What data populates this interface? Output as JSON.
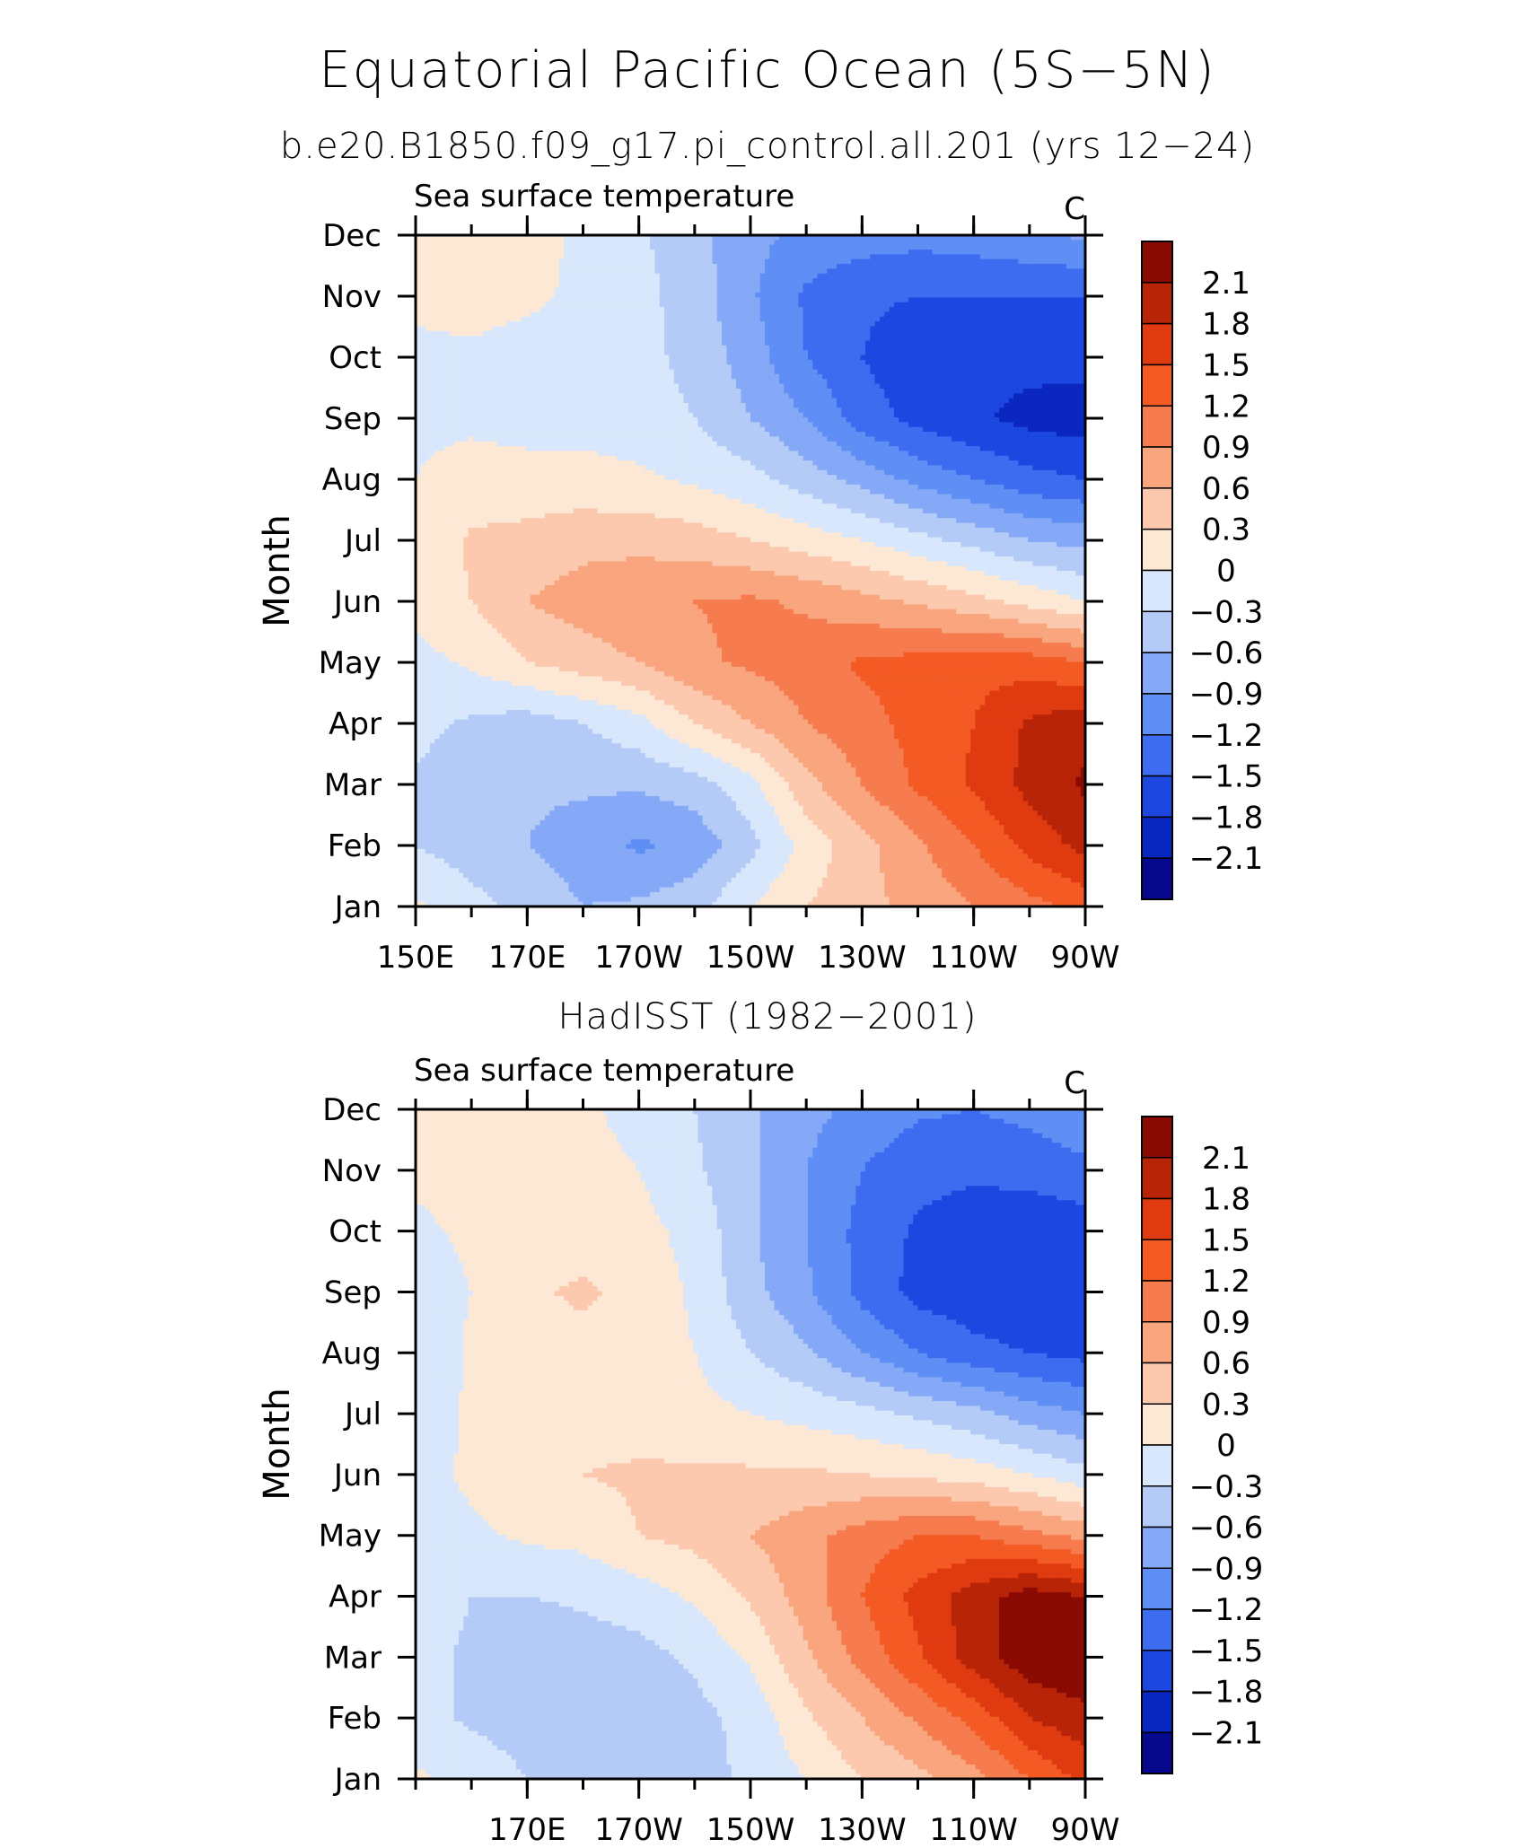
{
  "header": {
    "title": "Equatorial Pacific Ocean (5S−5N)",
    "subtitle": "b.e20.B1850.f09_g17.pi_control.all.201 (yrs 12−24)"
  },
  "colors": {
    "levels": [
      -2.4,
      -2.1,
      -1.8,
      -1.5,
      -1.2,
      -0.9,
      -0.6,
      -0.3,
      0,
      0.3,
      0.6,
      0.9,
      1.2,
      1.5,
      1.8,
      2.1,
      2.4
    ],
    "fills": [
      "#06098c",
      "#0a27bf",
      "#1c47e0",
      "#3d6cf0",
      "#5f8ef5",
      "#85a9f7",
      "#b4cbf8",
      "#d8e7fb",
      "#fde8d6",
      "#fcc9ae",
      "#f9a57e",
      "#f67c4f",
      "#f35a24",
      "#df3a10",
      "#b82407",
      "#8a0b03"
    ]
  },
  "chart_data": [
    {
      "type": "heatmap",
      "title": "b.e20.B1850.f09_g17.pi_control.all.201 (yrs 12−24)",
      "left_label": "Sea surface temperature",
      "right_label": "C",
      "ylabel": "Month",
      "xlabel": "",
      "x": [
        150,
        160,
        170,
        180,
        190,
        200,
        210,
        220,
        230,
        240,
        250,
        260,
        270
      ],
      "x_tick_values": [
        150,
        170,
        190,
        210,
        230,
        250,
        270
      ],
      "x_tick_labels": [
        "150E",
        "170E",
        "170W",
        "150W",
        "130W",
        "110W",
        "90W"
      ],
      "y_tick_labels": [
        "Jan",
        "Feb",
        "Mar",
        "Apr",
        "May",
        "Jun",
        "Jul",
        "Aug",
        "Sep",
        "Oct",
        "Nov",
        "Dec"
      ],
      "colorbar_labels": [
        "2.1",
        "1.8",
        "1.5",
        "1.2",
        "0.9",
        "0.6",
        "0.3",
        "0",
        "−0.3",
        "−0.6",
        "−0.9",
        "−1.2",
        "−1.5",
        "−1.8",
        "−2.1"
      ],
      "z": [
        [
          0.05,
          -0.2,
          -0.4,
          -0.6,
          -0.55,
          -0.4,
          0.0,
          0.3,
          0.5,
          0.7,
          0.9,
          1.1,
          1.3
        ],
        [
          -0.3,
          -0.45,
          -0.6,
          -0.75,
          -0.95,
          -0.8,
          -0.4,
          0.1,
          0.5,
          0.85,
          1.2,
          1.6,
          1.9
        ],
        [
          -0.35,
          -0.5,
          -0.55,
          -0.55,
          -0.55,
          -0.45,
          -0.1,
          0.5,
          0.9,
          1.25,
          1.55,
          1.9,
          2.15
        ],
        [
          -0.2,
          -0.35,
          -0.45,
          -0.3,
          -0.1,
          0.3,
          0.6,
          0.9,
          1.1,
          1.3,
          1.5,
          1.85,
          2.0
        ],
        [
          -0.1,
          0.05,
          0.3,
          0.45,
          0.6,
          0.85,
          0.95,
          1.05,
          1.25,
          1.3,
          1.4,
          1.35,
          1.2
        ],
        [
          0.1,
          0.3,
          0.6,
          0.75,
          0.85,
          0.9,
          0.95,
          0.85,
          0.7,
          0.55,
          0.4,
          0.2,
          0.0
        ],
        [
          0.05,
          0.35,
          0.4,
          0.5,
          0.5,
          0.45,
          0.3,
          0.15,
          0.0,
          -0.2,
          -0.4,
          -0.6,
          -0.7
        ],
        [
          0.0,
          0.1,
          0.1,
          0.1,
          0.05,
          -0.05,
          -0.2,
          -0.45,
          -0.7,
          -1.0,
          -1.2,
          -1.4,
          -1.5
        ],
        [
          -0.05,
          -0.05,
          -0.1,
          -0.1,
          -0.15,
          -0.3,
          -0.6,
          -0.9,
          -1.35,
          -1.6,
          -1.75,
          -1.9,
          -1.95
        ],
        [
          -0.05,
          -0.05,
          -0.1,
          -0.15,
          -0.2,
          -0.4,
          -0.75,
          -1.2,
          -1.5,
          -1.7,
          -1.7,
          -1.7,
          -1.7
        ],
        [
          0.05,
          0.1,
          0.05,
          -0.05,
          -0.2,
          -0.45,
          -0.85,
          -1.25,
          -1.45,
          -1.5,
          -1.5,
          -1.5,
          -1.5
        ],
        [
          0.1,
          0.15,
          0.1,
          -0.05,
          -0.25,
          -0.5,
          -0.8,
          -1.0,
          -1.05,
          -1.1,
          -1.05,
          -0.95,
          -0.85
        ]
      ]
    },
    {
      "type": "heatmap",
      "title": "HadISST (1982−2001)",
      "left_label": "Sea surface temperature",
      "right_label": "C",
      "ylabel": "Month",
      "xlabel": "",
      "x": [
        150,
        160,
        170,
        180,
        190,
        200,
        210,
        220,
        230,
        240,
        250,
        260,
        270
      ],
      "x_tick_values": [
        170,
        190,
        210,
        230,
        250,
        270
      ],
      "x_tick_labels": [
        "170E",
        "170W",
        "150W",
        "130W",
        "110W",
        "90W"
      ],
      "y_tick_labels": [
        "Jan",
        "Feb",
        "Mar",
        "Apr",
        "May",
        "Jun",
        "Jul",
        "Aug",
        "Sep",
        "Oct",
        "Nov",
        "Dec"
      ],
      "colorbar_labels": [
        "2.1",
        "1.8",
        "1.5",
        "1.2",
        "0.9",
        "0.6",
        "0.3",
        "0",
        "−0.3",
        "−0.6",
        "−0.9",
        "−1.2",
        "−1.5",
        "−1.8",
        "−2.1"
      ],
      "z": [
        [
          0.05,
          -0.1,
          -0.3,
          -0.4,
          -0.45,
          -0.4,
          -0.25,
          0.0,
          0.3,
          0.5,
          0.8,
          1.2,
          1.6
        ],
        [
          -0.2,
          -0.35,
          -0.45,
          -0.5,
          -0.5,
          -0.4,
          -0.2,
          0.25,
          0.6,
          0.95,
          1.3,
          1.8,
          2.0
        ],
        [
          -0.2,
          -0.35,
          -0.5,
          -0.45,
          -0.4,
          -0.25,
          0.05,
          0.55,
          1.0,
          1.45,
          1.95,
          2.3,
          2.4
        ],
        [
          -0.15,
          -0.3,
          -0.3,
          -0.25,
          -0.15,
          0.05,
          0.35,
          0.75,
          1.2,
          1.6,
          1.95,
          2.25,
          2.1
        ],
        [
          -0.1,
          -0.05,
          0.05,
          0.1,
          0.3,
          0.4,
          0.6,
          0.8,
          1.05,
          1.2,
          1.2,
          1.0,
          0.8
        ],
        [
          -0.1,
          0.05,
          0.15,
          0.3,
          0.35,
          0.35,
          0.35,
          0.35,
          0.3,
          0.25,
          0.15,
          0.0,
          -0.2
        ],
        [
          -0.2,
          0.05,
          0.15,
          0.2,
          0.15,
          0.1,
          0.0,
          -0.1,
          -0.2,
          -0.35,
          -0.5,
          -0.75,
          -0.9
        ],
        [
          -0.25,
          0.05,
          0.2,
          0.2,
          0.15,
          0.0,
          -0.3,
          -0.55,
          -0.9,
          -1.2,
          -1.4,
          -1.5,
          -1.6
        ],
        [
          -0.15,
          0.0,
          0.25,
          0.35,
          0.2,
          -0.05,
          -0.5,
          -0.85,
          -1.3,
          -1.6,
          -1.7,
          -1.8,
          -1.75
        ],
        [
          -0.05,
          0.05,
          0.15,
          0.15,
          0.1,
          -0.1,
          -0.55,
          -0.9,
          -1.3,
          -1.55,
          -1.65,
          -1.7,
          -1.65
        ],
        [
          0.05,
          0.1,
          0.1,
          0.1,
          0.0,
          -0.25,
          -0.55,
          -0.9,
          -1.2,
          -1.4,
          -1.45,
          -1.4,
          -1.3
        ],
        [
          0.1,
          0.1,
          0.1,
          0.05,
          -0.1,
          -0.3,
          -0.55,
          -0.8,
          -1.0,
          -1.15,
          -1.2,
          -1.1,
          -0.9
        ]
      ]
    }
  ]
}
